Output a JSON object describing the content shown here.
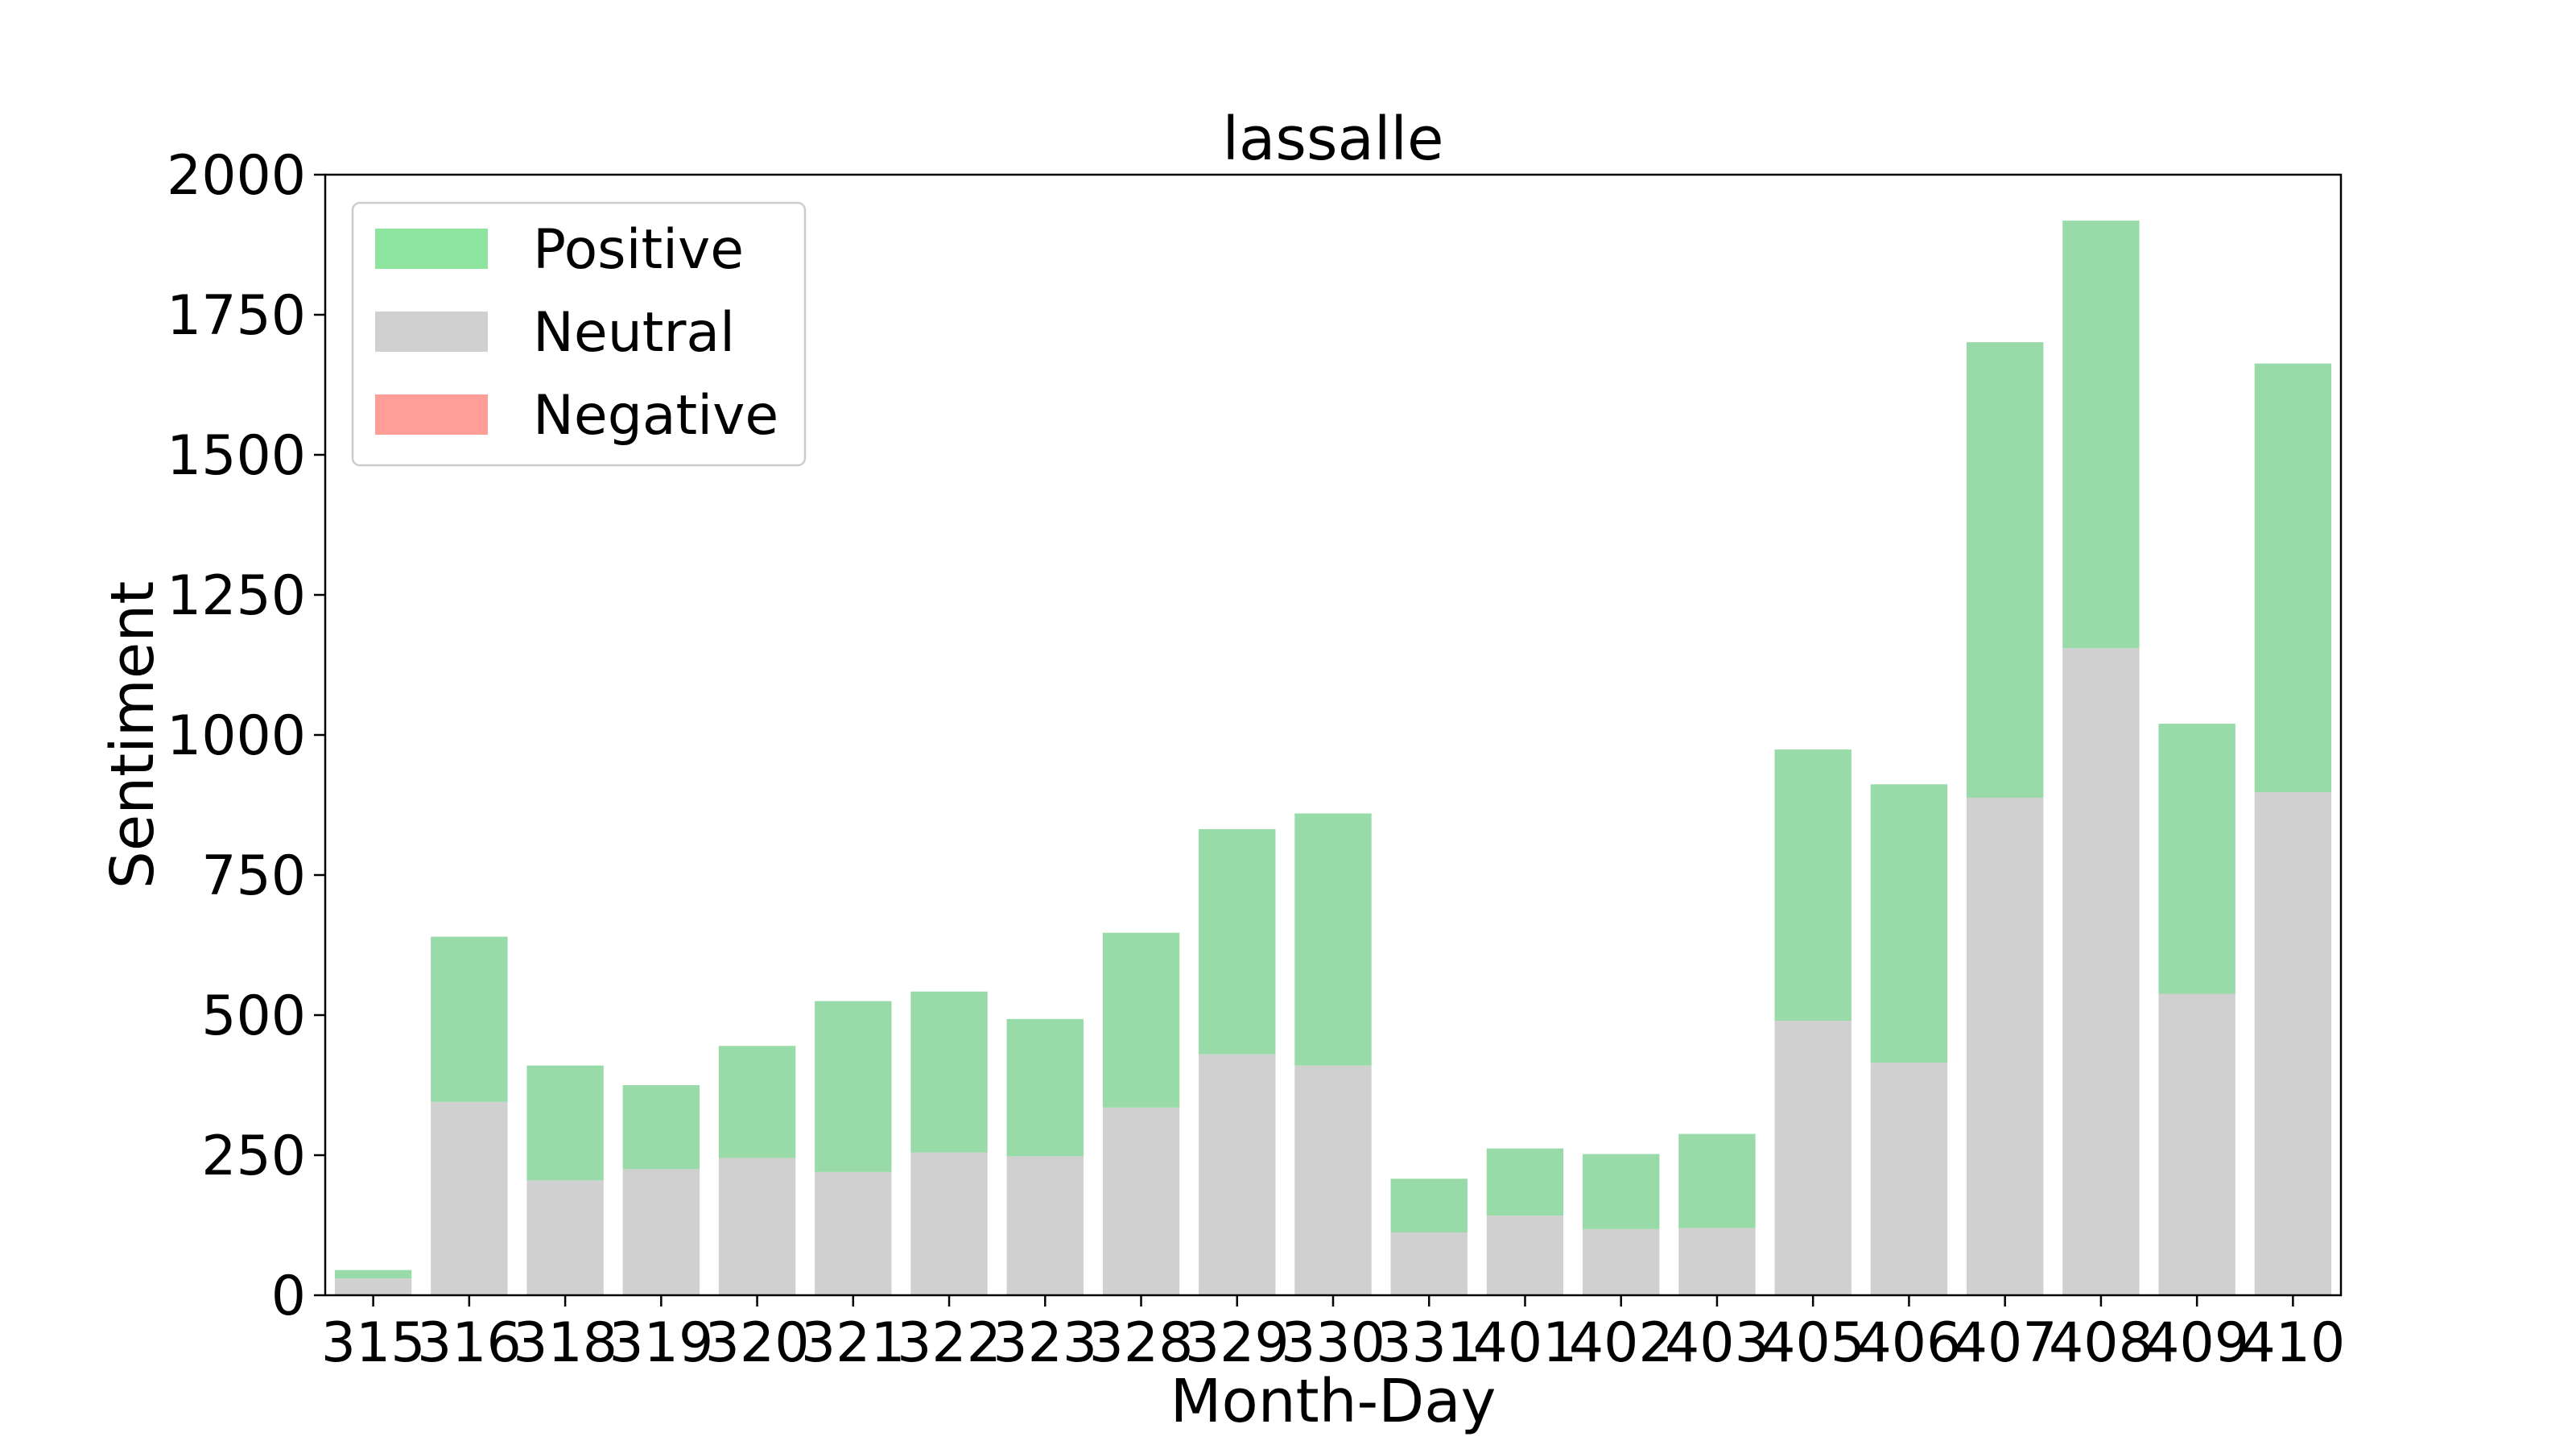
{
  "chart_data": {
    "type": "bar",
    "stacked": true,
    "title": "lassalle",
    "xlabel": "Month-Day",
    "ylabel": "Sentiment",
    "ylim": [
      0,
      2000
    ],
    "yticks": [
      0,
      250,
      500,
      750,
      1000,
      1250,
      1500,
      1750,
      2000
    ],
    "categories": [
      "315",
      "316",
      "318",
      "319",
      "320",
      "321",
      "322",
      "323",
      "328",
      "329",
      "330",
      "331",
      "401",
      "402",
      "403",
      "405",
      "406",
      "407",
      "408",
      "409",
      "410"
    ],
    "series": [
      {
        "name": "Negative",
        "color": "#ff9e99",
        "values": [
          0,
          0,
          0,
          0,
          0,
          0,
          0,
          0,
          0,
          0,
          0,
          0,
          0,
          0,
          0,
          0,
          0,
          0,
          0,
          0,
          0
        ]
      },
      {
        "name": "Neutral",
        "color": "#d0d0d0",
        "values": [
          30,
          345,
          205,
          225,
          245,
          220,
          255,
          248,
          335,
          430,
          410,
          112,
          142,
          118,
          120,
          490,
          415,
          888,
          1155,
          538,
          898
        ]
      },
      {
        "name": "Positive",
        "color": "#98dba8",
        "values": [
          15,
          295,
          205,
          150,
          200,
          305,
          287,
          245,
          312,
          402,
          450,
          96,
          120,
          134,
          168,
          484,
          497,
          813,
          763,
          482,
          765
        ]
      }
    ],
    "legend": {
      "placement": "top-left",
      "items": [
        {
          "label": "Positive",
          "color": "#8ee59f"
        },
        {
          "label": "Neutral",
          "color": "#d0d0d0"
        },
        {
          "label": "Negative",
          "color": "#ff9e99"
        }
      ]
    },
    "grid": false
  }
}
